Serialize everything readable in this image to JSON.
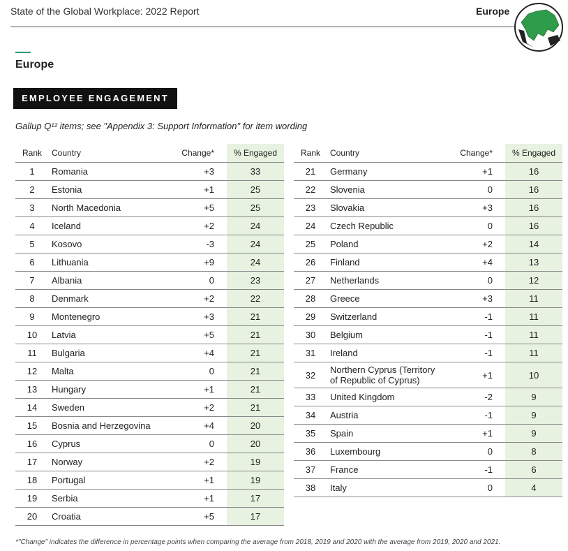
{
  "header": {
    "title": "State of the Global Workplace: 2022 Report",
    "region": "Europe"
  },
  "section": {
    "title": "Europe"
  },
  "badge": "EMPLOYEE ENGAGEMENT",
  "subtitle": "Gallup Q¹² items; see \"Appendix 3: Support Information\" for item wording",
  "tables": [
    {
      "columns": [
        "Rank",
        "Country",
        "Change*",
        "% Engaged"
      ],
      "rows": [
        [
          1,
          "Romania",
          "+3",
          33
        ],
        [
          2,
          "Estonia",
          "+1",
          25
        ],
        [
          3,
          "North Macedonia",
          "+5",
          25
        ],
        [
          4,
          "Iceland",
          "+2",
          24
        ],
        [
          5,
          "Kosovo",
          "-3",
          24
        ],
        [
          6,
          "Lithuania",
          "+9",
          24
        ],
        [
          7,
          "Albania",
          "0",
          23
        ],
        [
          8,
          "Denmark",
          "+2",
          22
        ],
        [
          9,
          "Montenegro",
          "+3",
          21
        ],
        [
          10,
          "Latvia",
          "+5",
          21
        ],
        [
          11,
          "Bulgaria",
          "+4",
          21
        ],
        [
          12,
          "Malta",
          "0",
          21
        ],
        [
          13,
          "Hungary",
          "+1",
          21
        ],
        [
          14,
          "Sweden",
          "+2",
          21
        ],
        [
          15,
          "Bosnia and Herzegovina",
          "+4",
          20
        ],
        [
          16,
          "Cyprus",
          "0",
          20
        ],
        [
          17,
          "Norway",
          "+2",
          19
        ],
        [
          18,
          "Portugal",
          "+1",
          19
        ],
        [
          19,
          "Serbia",
          "+1",
          17
        ],
        [
          20,
          "Croatia",
          "+5",
          17
        ]
      ]
    },
    {
      "columns": [
        "Rank",
        "Country",
        "Change*",
        "% Engaged"
      ],
      "rows": [
        [
          21,
          "Germany",
          "+1",
          16
        ],
        [
          22,
          "Slovenia",
          "0",
          16
        ],
        [
          23,
          "Slovakia",
          "+3",
          16
        ],
        [
          24,
          "Czech Republic",
          "0",
          16
        ],
        [
          25,
          "Poland",
          "+2",
          14
        ],
        [
          26,
          "Finland",
          "+4",
          13
        ],
        [
          27,
          "Netherlands",
          "0",
          12
        ],
        [
          28,
          "Greece",
          "+3",
          11
        ],
        [
          29,
          "Switzerland",
          "-1",
          11
        ],
        [
          30,
          "Belgium",
          "-1",
          11
        ],
        [
          31,
          "Ireland",
          "-1",
          11
        ],
        [
          32,
          "Northern Cyprus (Territory of Republic of Cyprus)",
          "+1",
          10
        ],
        [
          33,
          "United Kingdom",
          "-2",
          9
        ],
        [
          34,
          "Austria",
          "-1",
          9
        ],
        [
          35,
          "Spain",
          "+1",
          9
        ],
        [
          36,
          "Luxembourg",
          "0",
          8
        ],
        [
          37,
          "France",
          "-1",
          6
        ],
        [
          38,
          "Italy",
          "0",
          4
        ]
      ]
    }
  ],
  "footnote": "*\"Change\" indicates the difference in percentage points when comparing the average from 2018, 2019 and 2020 with the average from 2019, 2020 and 2021."
}
